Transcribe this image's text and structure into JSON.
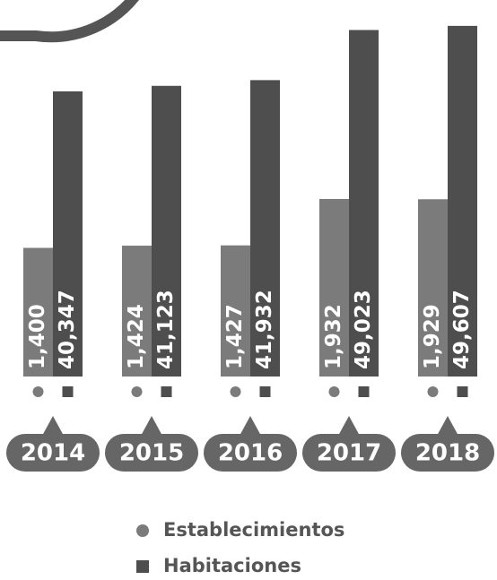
{
  "chart_data": {
    "type": "bar",
    "categories": [
      "2014",
      "2015",
      "2016",
      "2017",
      "2018"
    ],
    "series": [
      {
        "name": "Establecimientos",
        "color": "#7b7b7b",
        "axis": "y2",
        "values": [
          1400,
          1424,
          1427,
          1932,
          1929
        ],
        "value_labels": [
          "1,400",
          "1,424",
          "1,427",
          "1,932",
          "1,929"
        ]
      },
      {
        "name": "Habitaciones",
        "color": "#4e4e4e",
        "values": [
          40347,
          41123,
          41932,
          49023,
          49607
        ],
        "value_labels": [
          "40,347",
          "41,123",
          "41,932",
          "49,023",
          "49,607"
        ]
      }
    ],
    "ylim": [
      0,
      52000
    ],
    "y2lim": [
      0,
      4000
    ]
  }
}
